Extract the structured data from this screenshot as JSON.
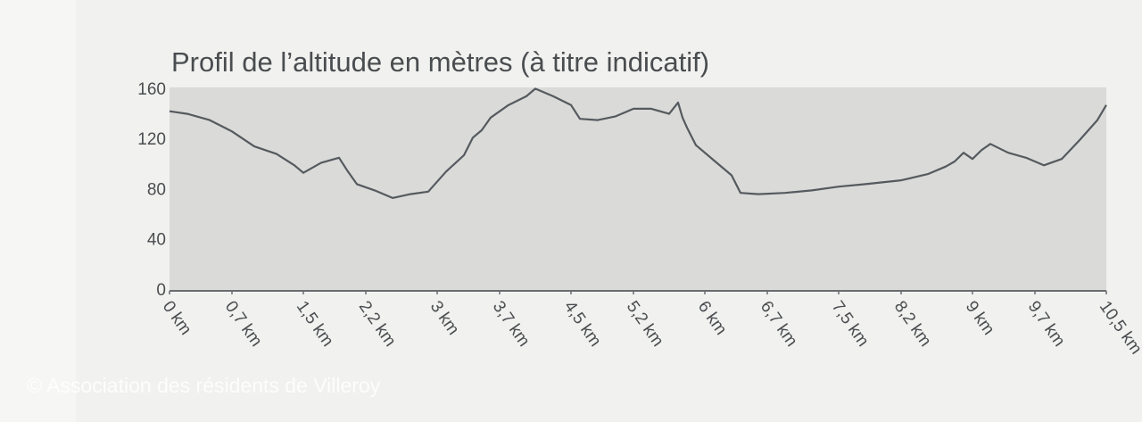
{
  "chart_data": {
    "type": "line",
    "title": "Profil de l’altitude en mètres (à titre indicatif)",
    "credit": "© Association des résidents de Villeroy",
    "x": [
      0,
      0.2,
      0.45,
      0.7,
      0.95,
      1.2,
      1.4,
      1.5,
      1.7,
      1.9,
      2.0,
      2.1,
      2.3,
      2.5,
      2.7,
      2.9,
      3.1,
      3.3,
      3.4,
      3.5,
      3.6,
      3.8,
      4.0,
      4.1,
      4.3,
      4.5,
      4.6,
      4.8,
      5.0,
      5.2,
      5.4,
      5.6,
      5.7,
      5.75,
      5.8,
      5.9,
      6.1,
      6.3,
      6.4,
      6.6,
      6.9,
      7.2,
      7.5,
      7.8,
      8.2,
      8.5,
      8.7,
      8.8,
      8.9,
      9.0,
      9.1,
      9.2,
      9.4,
      9.6,
      9.8,
      10.0,
      10.2,
      10.4,
      10.5
    ],
    "series": [
      {
        "name": "Altitude",
        "color": "#555a5e",
        "values": [
          143,
          141,
          136,
          127,
          115,
          109,
          100,
          94,
          102,
          106,
          95,
          85,
          80,
          74,
          77,
          79,
          95,
          108,
          122,
          128,
          138,
          148,
          155,
          161,
          155,
          148,
          137,
          136,
          139,
          145,
          145,
          141,
          150,
          138,
          130,
          116,
          104,
          92,
          78,
          77,
          78,
          80,
          83,
          85,
          88,
          93,
          99,
          103,
          110,
          105,
          112,
          117,
          110,
          106,
          100,
          105,
          120,
          136,
          148
        ]
      }
    ],
    "xlim": [
      0,
      10.5
    ],
    "xticks": [
      {
        "value": 0,
        "label": "0 km"
      },
      {
        "value": 0.7,
        "label": "0,7 km"
      },
      {
        "value": 1.5,
        "label": "1,5 km"
      },
      {
        "value": 2.2,
        "label": "2,2 km"
      },
      {
        "value": 3,
        "label": "3 km"
      },
      {
        "value": 3.7,
        "label": "3,7 km"
      },
      {
        "value": 4.5,
        "label": "4,5 km"
      },
      {
        "value": 5.2,
        "label": "5,2 km"
      },
      {
        "value": 6,
        "label": "6 km"
      },
      {
        "value": 6.7,
        "label": "6,7 km"
      },
      {
        "value": 7.5,
        "label": "7,5 km"
      },
      {
        "value": 8.2,
        "label": "8,2 km"
      },
      {
        "value": 9,
        "label": "9 km"
      },
      {
        "value": 9.7,
        "label": "9,7 km"
      },
      {
        "value": 10.5,
        "label": "10,5 km"
      }
    ],
    "ylim": [
      0,
      162
    ],
    "yticks": [
      0,
      40,
      80,
      120,
      160
    ],
    "grid": false
  }
}
